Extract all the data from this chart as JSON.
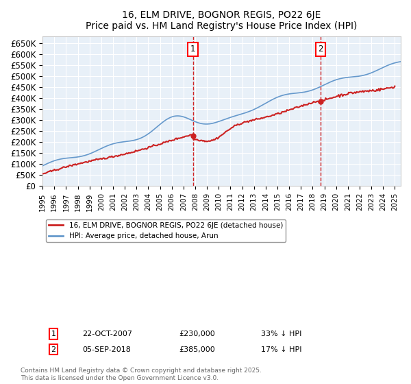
{
  "title": "16, ELM DRIVE, BOGNOR REGIS, PO22 6JE",
  "subtitle": "Price paid vs. HM Land Registry's House Price Index (HPI)",
  "ylim": [
    0,
    680000
  ],
  "yticks": [
    0,
    50000,
    100000,
    150000,
    200000,
    250000,
    300000,
    350000,
    400000,
    450000,
    500000,
    550000,
    600000,
    650000
  ],
  "ytick_labels": [
    "£0",
    "£50K",
    "£100K",
    "£150K",
    "£200K",
    "£250K",
    "£300K",
    "£350K",
    "£400K",
    "£450K",
    "£500K",
    "£550K",
    "£600K",
    "£650K"
  ],
  "annotation1": {
    "label": "1",
    "date_dec": 2007.81,
    "price": 230000,
    "text": "22-OCT-2007",
    "amount": "£230,000",
    "pct": "33% ↓ HPI"
  },
  "annotation2": {
    "label": "2",
    "date_dec": 2018.68,
    "price": 385000,
    "text": "05-SEP-2018",
    "amount": "£385,000",
    "pct": "17% ↓ HPI"
  },
  "hpi_color": "#6699cc",
  "price_color": "#cc2222",
  "vline_color": "#cc0000",
  "bg_color": "#e8f0f8",
  "legend_entry1": "16, ELM DRIVE, BOGNOR REGIS, PO22 6JE (detached house)",
  "legend_entry2": "HPI: Average price, detached house, Arun",
  "footnote": "Contains HM Land Registry data © Crown copyright and database right 2025.\nThis data is licensed under the Open Government Licence v3.0."
}
